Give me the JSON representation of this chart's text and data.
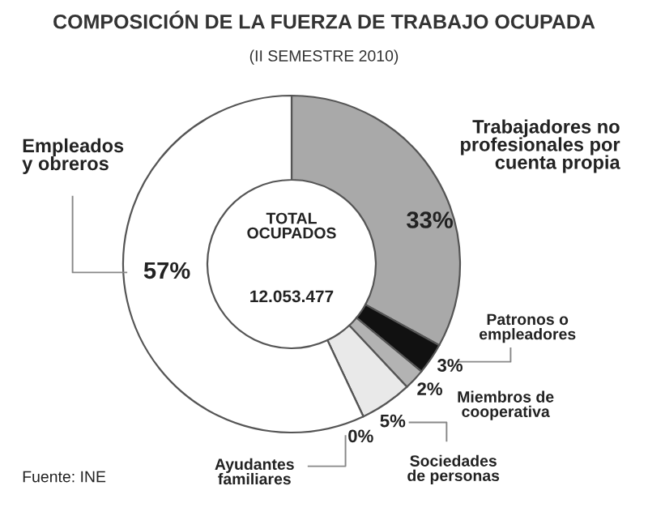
{
  "chart_data": {
    "type": "donut",
    "title": "COMPOSICIÓN DE LA FUERZA DE TRABAJO OCUPADA",
    "subtitle": "(II SEMESTRE 2010)",
    "categories": [
      "Trabajadores no\nprofesionales por\ncuenta propia",
      "Patronos o\nempleadores",
      "Miembros de\ncooperativa",
      "Sociedades\nde personas",
      "Ayudantes\nfamiliares",
      "Empleados\ny obreros"
    ],
    "values": [
      33,
      3,
      2,
      5,
      0,
      57
    ],
    "colors": [
      "#a9a9a9",
      "#111111",
      "#b3b3b3",
      "#e9e9e9",
      "#111111",
      "#ffffff"
    ],
    "value_labels": [
      "33%",
      "3%",
      "2%",
      "5%",
      "0%",
      "57%"
    ],
    "annotations": [
      "TOTAL\nOCUPADOS",
      "12.053.477",
      "Fuente: INE"
    ],
    "legend": false
  }
}
